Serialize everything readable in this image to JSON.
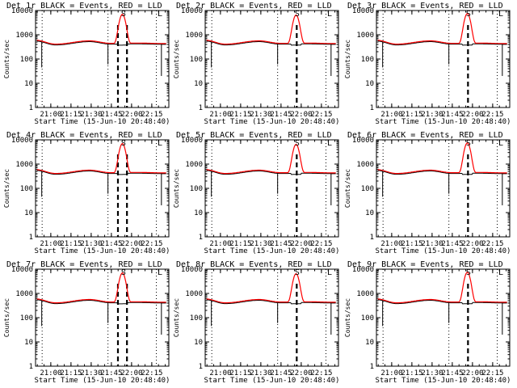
{
  "chart_data": {
    "type": "line",
    "layout": "3x3 grid of small multiples",
    "shared_xlabel": "Start Time (15-Jun-10 20:48:40)",
    "shared_ylabel": "Counts/sec",
    "x_tick_labels": [
      "21:00",
      "21:15",
      "21:30",
      "21:45",
      "22:00",
      "22:15"
    ],
    "x_ticks_minutes_after_start": [
      11.33,
      26.33,
      41.33,
      56.33,
      71.33,
      86.33
    ],
    "xlim_minutes_after_start": [
      0,
      99
    ],
    "y_scale": "log",
    "ylim": [
      1,
      10000
    ],
    "y_tick_labels": [
      "1",
      "10",
      "100",
      "1000",
      "10000"
    ],
    "series_colors": {
      "events": "#000000",
      "lld": "#ff0000"
    },
    "dotted_vertical_lines_minutes": [
      4.9,
      53.8,
      89.7
    ],
    "dashed_vertical_lines_minutes": [
      61.2,
      67.9
    ],
    "panel_corner_letters": [
      "S",
      "L"
    ],
    "panels": [
      {
        "title": "Det 1r BLACK = Events, RED = LLD",
        "peak_x": 64.5,
        "peak_y": 7000
      },
      {
        "title": "Det 2r BLACK = Events, RED = LLD",
        "peak_x": 67.5,
        "peak_y": 6500
      },
      {
        "title": "Det 3r BLACK = Events, RED = LLD",
        "peak_x": 67.5,
        "peak_y": 7500
      },
      {
        "title": "Det 4r BLACK = Events, RED = LLD",
        "peak_x": 64.5,
        "peak_y": 7000
      },
      {
        "title": "Det 5r BLACK = Events, RED = LLD",
        "peak_x": 67.5,
        "peak_y": 6500
      },
      {
        "title": "Det 6r BLACK = Events, RED = LLD",
        "peak_x": 67.5,
        "peak_y": 7500
      },
      {
        "title": "Det 7r BLACK = Events, RED = LLD",
        "peak_x": 64.5,
        "peak_y": 7000
      },
      {
        "title": "Det 8r BLACK = Events, RED = LLD",
        "peak_x": 67.5,
        "peak_y": 6500
      },
      {
        "title": "Det 9r BLACK = Events, RED = LLD",
        "peak_x": 67.5,
        "peak_y": 7500
      }
    ],
    "baseline_counts": {
      "start": 550,
      "trough": 380,
      "bump": 520,
      "end": 400
    }
  }
}
